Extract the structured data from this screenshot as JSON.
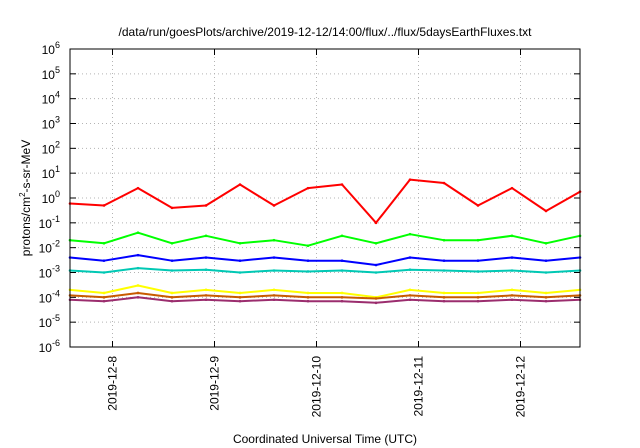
{
  "chart_data": {
    "type": "line",
    "title": "/data/run/goesPlots/archive/2019-12-12/14:00/flux/../flux/5daysEarthFluxes.txt",
    "xlabel": "Coordinated Universal Time (UTC)",
    "ylabel": "protons/cm²-s-sr-MeV",
    "ylabel_parts": {
      "base": "protons/cm",
      "sup": "2",
      "rest": "-s-sr-MeV"
    },
    "yscale": "log",
    "ylim": [
      1e-06,
      1000000.0
    ],
    "yticks": [
      {
        "base": "10",
        "exp": "-6"
      },
      {
        "base": "10",
        "exp": "-5"
      },
      {
        "base": "10",
        "exp": "-4"
      },
      {
        "base": "10",
        "exp": "-3"
      },
      {
        "base": "10",
        "exp": "-2"
      },
      {
        "base": "10",
        "exp": "-1"
      },
      {
        "base": "10",
        "exp": "0"
      },
      {
        "base": "10",
        "exp": "1"
      },
      {
        "base": "10",
        "exp": "2"
      },
      {
        "base": "10",
        "exp": "3"
      },
      {
        "base": "10",
        "exp": "4"
      },
      {
        "base": "10",
        "exp": "5"
      },
      {
        "base": "10",
        "exp": "6"
      }
    ],
    "xlim": [
      "2019-12-07T14:00",
      "2019-12-12T14:00"
    ],
    "xticks": [
      "2019-12-8",
      "2019-12-9",
      "2019-12-10",
      "2019-12-11",
      "2019-12-12"
    ],
    "grid": true,
    "x": [
      "2019-12-07T14:00",
      "2019-12-07T22:00",
      "2019-12-08T06:00",
      "2019-12-08T14:00",
      "2019-12-08T22:00",
      "2019-12-09T06:00",
      "2019-12-09T14:00",
      "2019-12-09T22:00",
      "2019-12-10T06:00",
      "2019-12-10T14:00",
      "2019-12-10T22:00",
      "2019-12-11T06:00",
      "2019-12-11T14:00",
      "2019-12-11T22:00",
      "2019-12-12T06:00",
      "2019-12-12T14:00"
    ],
    "series": [
      {
        "color": "#ff0000",
        "values": [
          0.6,
          0.5,
          2.5,
          0.4,
          0.5,
          3.5,
          0.5,
          2.5,
          3.5,
          0.1,
          5.5,
          4.0,
          0.5,
          2.5,
          0.3,
          1.8
        ]
      },
      {
        "color": "#00ff00",
        "values": [
          0.02,
          0.015,
          0.04,
          0.015,
          0.03,
          0.015,
          0.02,
          0.012,
          0.03,
          0.015,
          0.035,
          0.02,
          0.02,
          0.03,
          0.015,
          0.03
        ]
      },
      {
        "color": "#0000ff",
        "values": [
          0.004,
          0.003,
          0.005,
          0.003,
          0.004,
          0.003,
          0.004,
          0.003,
          0.003,
          0.002,
          0.004,
          0.003,
          0.003,
          0.004,
          0.003,
          0.004
        ]
      },
      {
        "color": "#00c8b4",
        "values": [
          0.0012,
          0.001,
          0.0015,
          0.0012,
          0.0013,
          0.001,
          0.0012,
          0.0011,
          0.0012,
          0.001,
          0.0013,
          0.0012,
          0.0011,
          0.0012,
          0.001,
          0.0012
        ]
      },
      {
        "color": "#ffff00",
        "values": [
          0.0002,
          0.00015,
          0.0003,
          0.00015,
          0.0002,
          0.00015,
          0.0002,
          0.00015,
          0.00015,
          0.0001,
          0.0002,
          0.00015,
          0.00015,
          0.0002,
          0.00015,
          0.0002
        ]
      },
      {
        "color": "#c85a00",
        "values": [
          0.00012,
          0.0001,
          0.00015,
          0.0001,
          0.00012,
          0.0001,
          0.00012,
          0.0001,
          0.0001,
          9e-05,
          0.00012,
          0.0001,
          0.0001,
          0.00012,
          0.0001,
          0.00012
        ]
      },
      {
        "color": "#9b2d6e",
        "values": [
          8e-05,
          7e-05,
          0.0001,
          7e-05,
          8e-05,
          7e-05,
          8e-05,
          7e-05,
          7e-05,
          6e-05,
          8e-05,
          7e-05,
          7e-05,
          8e-05,
          7e-05,
          8e-05
        ]
      }
    ]
  }
}
